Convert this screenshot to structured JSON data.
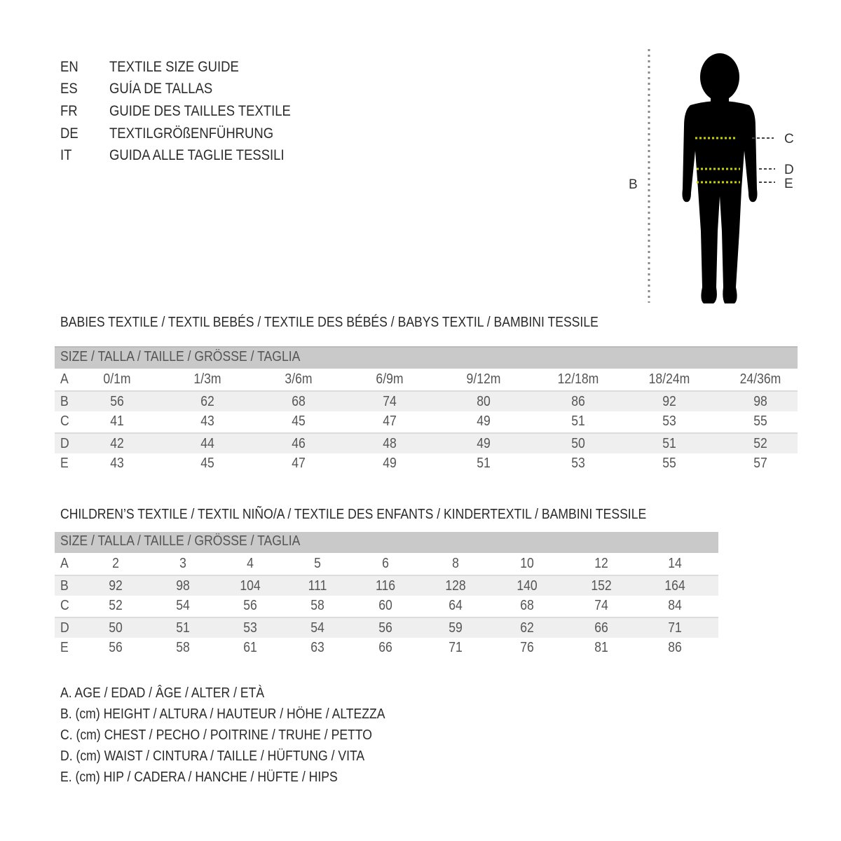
{
  "titles": [
    {
      "code": "EN",
      "text": "TEXTILE SIZE GUIDE"
    },
    {
      "code": "ES",
      "text": "GUÍA DE TALLAS"
    },
    {
      "code": "FR",
      "text": "GUIDE DES TAILLES TEXTILE"
    },
    {
      "code": "DE",
      "text": "TEXTILGRÖßENFÜHRUNG"
    },
    {
      "code": "IT",
      "text": "GUIDA ALLE TAGLIE TESSILI"
    }
  ],
  "figure": {
    "labels": {
      "height": "B",
      "chest": "C",
      "waist": "D",
      "hip": "E"
    },
    "measure_line_color": "#c8d400"
  },
  "babies": {
    "caption": "BABIES TEXTILE / TEXTIL BEBÉS / TEXTILE DES BÉBÉS / BABYS TEXTIL  / BAMBINI TESSILE",
    "header": "SIZE / TALLA / TAILLE / GRÖSSE / TAGLIA",
    "rows": [
      {
        "label": "A",
        "values": [
          "0/1m",
          "1/3m",
          "3/6m",
          "6/9m",
          "9/12m",
          "12/18m",
          "18/24m",
          "24/36m"
        ]
      },
      {
        "label": "B",
        "values": [
          "56",
          "62",
          "68",
          "74",
          "80",
          "86",
          "92",
          "98"
        ]
      },
      {
        "label": "C",
        "values": [
          "41",
          "43",
          "45",
          "47",
          "49",
          "51",
          "53",
          "55"
        ]
      },
      {
        "label": "D",
        "values": [
          "42",
          "44",
          "46",
          "48",
          "49",
          "50",
          "51",
          "52"
        ]
      },
      {
        "label": "E",
        "values": [
          "43",
          "45",
          "47",
          "49",
          "51",
          "53",
          "55",
          "57"
        ]
      }
    ]
  },
  "children": {
    "caption": "CHILDREN’S TEXTILE / TEXTIL NIÑO/A / TEXTILE DES ENFANTS / KINDERTEXTIL / BAMBINI TESSILE",
    "header": "SIZE / TALLA / TAILLE / GRÖSSE / TAGLIA",
    "rows": [
      {
        "label": "A",
        "values": [
          "2",
          "3",
          "4",
          "5",
          "6",
          "8",
          "10",
          "12",
          "14"
        ]
      },
      {
        "label": "B",
        "values": [
          "92",
          "98",
          "104",
          "111",
          "116",
          "128",
          "140",
          "152",
          "164"
        ]
      },
      {
        "label": "C",
        "values": [
          "52",
          "54",
          "56",
          "58",
          "60",
          "64",
          "68",
          "74",
          "84"
        ]
      },
      {
        "label": "D",
        "values": [
          "50",
          "51",
          "53",
          "54",
          "56",
          "59",
          "62",
          "66",
          "71"
        ]
      },
      {
        "label": "E",
        "values": [
          "56",
          "58",
          "61",
          "63",
          "66",
          "71",
          "76",
          "81",
          "86"
        ]
      }
    ]
  },
  "legend": [
    "A. AGE / EDAD / ÂGE / ALTER / ETÀ",
    "B. (cm) HEIGHT / ALTURA / HAUTEUR / HÖHE / ALTEZZA",
    "C. (cm) CHEST / PECHO / POITRINE / TRUHE / PETTO",
    "D. (cm) WAIST / CINTURA / TAILLE / HÜFTUNG / VITA",
    "E. (cm) HIP / CADERA / HANCHE / HÜFTE / HIPS"
  ]
}
